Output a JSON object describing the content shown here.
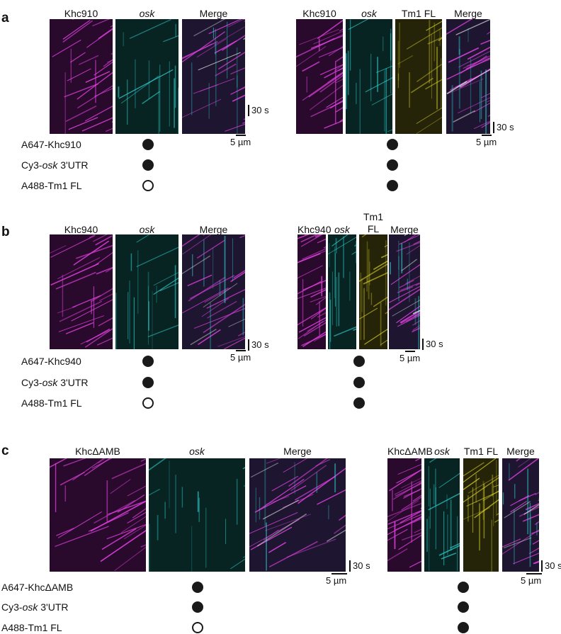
{
  "panels": [
    {
      "letter": "a",
      "left": {
        "headers": [
          {
            "text": "Khc910",
            "italic": false
          },
          {
            "text": "osk",
            "italic": true
          },
          {
            "text": "Merge",
            "italic": false
          }
        ],
        "scale": {
          "time": "30 s",
          "length": "5 µm"
        }
      },
      "right": {
        "headers": [
          {
            "text": "Khc910",
            "italic": false
          },
          {
            "text": "osk",
            "italic": true
          },
          {
            "text": "Tm1 FL",
            "italic": false
          },
          {
            "text": "Merge",
            "italic": false
          }
        ],
        "scale": {
          "time": "30 s",
          "length": "5 µm"
        }
      },
      "rows": [
        {
          "pre": "A647-Khc910",
          "it": "",
          "post": "",
          "left": "filled",
          "right": "filled"
        },
        {
          "pre": "Cy3-",
          "it": "osk",
          "post": " 3'UTR",
          "left": "filled",
          "right": "filled"
        },
        {
          "pre": "A488-Tm1 FL",
          "it": "",
          "post": "",
          "left": "open",
          "right": "filled"
        }
      ]
    },
    {
      "letter": "b",
      "left": {
        "headers": [
          {
            "text": "Khc940",
            "italic": false
          },
          {
            "text": "osk",
            "italic": true
          },
          {
            "text": "Merge",
            "italic": false
          }
        ],
        "scale": {
          "time": "30 s",
          "length": "5 µm"
        }
      },
      "right": {
        "headers": [
          {
            "text": "Khc940",
            "italic": false
          },
          {
            "text": "osk",
            "italic": true
          },
          {
            "text": "Tm1 FL",
            "italic": false
          },
          {
            "text": "Merge",
            "italic": false
          }
        ],
        "scale": {
          "time": "30 s",
          "length": "5 µm"
        }
      },
      "rows": [
        {
          "pre": "A647-Khc940",
          "it": "",
          "post": "",
          "left": "filled",
          "right": "filled"
        },
        {
          "pre": "Cy3-",
          "it": "osk",
          "post": " 3'UTR",
          "left": "filled",
          "right": "filled"
        },
        {
          "pre": "A488-Tm1 FL",
          "it": "",
          "post": "",
          "left": "open",
          "right": "filled"
        }
      ]
    },
    {
      "letter": "c",
      "left": {
        "headers": [
          {
            "text": "KhcΔAMB",
            "italic": false
          },
          {
            "text": "osk",
            "italic": true
          },
          {
            "text": "Merge",
            "italic": false
          }
        ],
        "scale": {
          "time": "30 s",
          "length": "5 µm"
        }
      },
      "right": {
        "headers": [
          {
            "text": "KhcΔAMB",
            "italic": false
          },
          {
            "text": "osk",
            "italic": true
          },
          {
            "text": "Tm1 FL",
            "italic": false
          },
          {
            "text": "Merge",
            "italic": false
          }
        ],
        "scale": {
          "time": "30 s",
          "length": "5 µm"
        }
      },
      "rows": [
        {
          "pre": "A647-KhcΔAMB",
          "it": "",
          "post": "",
          "left": "filled",
          "right": "filled"
        },
        {
          "pre": "Cy3-",
          "it": "osk",
          "post": " 3'UTR",
          "left": "filled",
          "right": "filled"
        },
        {
          "pre": "A488-Tm1 FL",
          "it": "",
          "post": "",
          "left": "open",
          "right": "filled"
        }
      ]
    }
  ],
  "channel_colors": {
    "Khc": "#e040e0",
    "osk": "#30d8d8",
    "Tm1": "#e8e030",
    "bg_Khc": "#2a0a2c",
    "bg_osk": "#082422",
    "bg_Tm1": "#262408",
    "bg_Merge": "#1e1630"
  }
}
